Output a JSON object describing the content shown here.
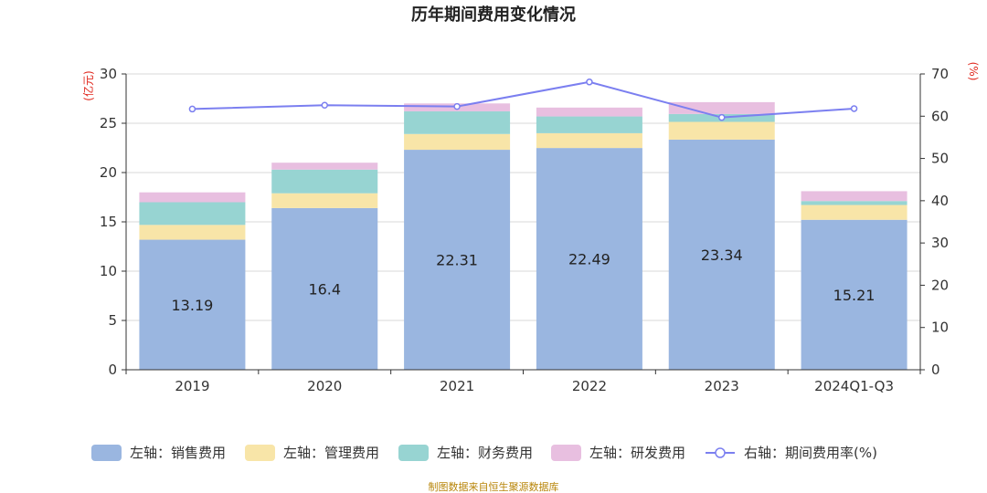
{
  "chart_data": {
    "type": "bar",
    "title": "历年期间费用变化情况",
    "categories": [
      "2019",
      "2020",
      "2021",
      "2022",
      "2023",
      "2024Q1-Q3"
    ],
    "left_axis": {
      "unit": "(亿元)",
      "ylim": [
        0,
        30
      ],
      "ticks": [
        "0",
        "5",
        "10",
        "15",
        "20",
        "25",
        "30"
      ]
    },
    "right_axis": {
      "unit": "(%)",
      "ylim": [
        0,
        70
      ],
      "ticks": [
        "0",
        "10",
        "20",
        "30",
        "40",
        "50",
        "60",
        "70"
      ]
    },
    "series": [
      {
        "name": "左轴：销售费用",
        "axis": "left",
        "kind": "stacked-bar",
        "color": "#9ab6e0",
        "values": [
          13.19,
          16.4,
          22.31,
          22.49,
          23.34,
          15.21
        ],
        "labels": [
          "13.19",
          "16.4",
          "22.31",
          "22.49",
          "23.34",
          "15.21"
        ]
      },
      {
        "name": "左轴：管理费用",
        "axis": "left",
        "kind": "stacked-bar",
        "color": "#f8e5a8",
        "values": [
          1.5,
          1.5,
          1.6,
          1.5,
          1.8,
          1.5
        ]
      },
      {
        "name": "左轴：财务费用",
        "axis": "left",
        "kind": "stacked-bar",
        "color": "#97d4d2",
        "values": [
          2.3,
          2.4,
          2.3,
          1.7,
          0.8,
          0.4
        ]
      },
      {
        "name": "左轴：研发费用",
        "axis": "left",
        "kind": "stacked-bar",
        "color": "#e8bfe0",
        "values": [
          1.0,
          0.7,
          0.8,
          0.9,
          1.2,
          1.0
        ]
      },
      {
        "name": "右轴：期间费用率(%)",
        "axis": "right",
        "kind": "line",
        "color": "#7b7ff0",
        "values": [
          61.7,
          62.6,
          62.3,
          68.1,
          59.7,
          61.8
        ]
      }
    ],
    "legend_position": "bottom",
    "grid": true
  },
  "footer": {
    "source": "制图数据来自恒生聚源数据库"
  }
}
